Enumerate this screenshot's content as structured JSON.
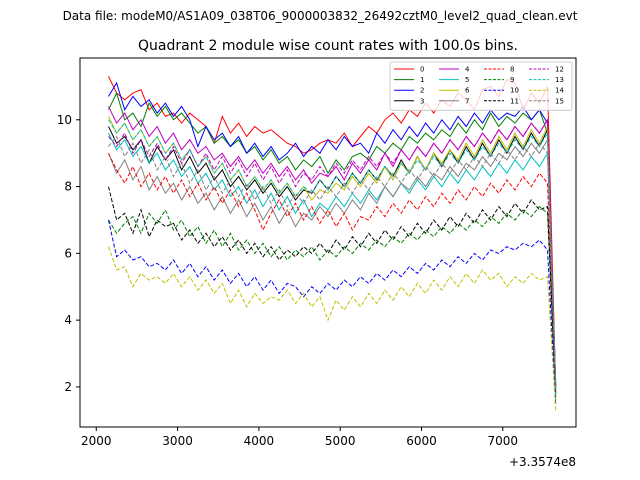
{
  "figure": {
    "suptitle": "Data file: modeM0/AS1A09_038T06_9000003832_26492cztM0_level2_quad_clean.evt",
    "offset_label": "+3.3574e8"
  },
  "chart_data": {
    "type": "line",
    "title": "Quadrant 2 module wise count rates with 100.0s bins.",
    "xlabel": "",
    "ylabel": "",
    "x_offset": 335740000,
    "xlim": [
      1800,
      7900
    ],
    "ylim": [
      0.8,
      11.85
    ],
    "xticks": [
      2000,
      3000,
      4000,
      5000,
      6000,
      7000
    ],
    "yticks": [
      2,
      4,
      6,
      8,
      10
    ],
    "grid": false,
    "legend_position": "top-right",
    "legend_columns": 4,
    "x_start": 2150,
    "x_step": 100,
    "series": [
      {
        "name": "0",
        "color": "#ff0000",
        "style": "solid",
        "values": [
          11.3,
          10.8,
          10.6,
          10.8,
          10.9,
          10.3,
          10.5,
          10.1,
          10.2,
          9.9,
          10.2,
          10.0,
          9.8,
          9.3,
          10.1,
          9.6,
          9.9,
          9.5,
          9.8,
          9.6,
          9.7,
          9.5,
          9.3,
          9.2,
          9.0,
          9.1,
          9.3,
          9.4,
          9.3,
          9.6,
          9.2,
          9.5,
          9.8,
          9.6,
          10.0,
          10.2,
          9.9,
          10.3,
          10.1,
          10.5,
          10.2,
          10.6,
          10.4,
          10.8,
          10.6,
          10.3,
          10.9,
          11.0,
          10.7,
          11.2,
          11.1,
          10.3,
          10.8,
          10.5,
          11.0,
          2.0
        ]
      },
      {
        "name": "1",
        "color": "#008000",
        "style": "solid",
        "values": [
          10.3,
          10.8,
          10.0,
          10.2,
          9.8,
          10.5,
          10.1,
          10.4,
          10.0,
          10.2,
          9.9,
          9.6,
          9.8,
          9.3,
          9.5,
          9.2,
          9.4,
          9.0,
          9.2,
          8.8,
          9.1,
          8.7,
          8.9,
          8.5,
          8.8,
          8.6,
          8.9,
          8.4,
          8.8,
          8.5,
          8.9,
          9.0,
          8.8,
          9.2,
          9.0,
          9.3,
          9.1,
          9.5,
          9.3,
          9.6,
          9.4,
          9.7,
          9.5,
          9.9,
          9.6,
          10.0,
          9.7,
          10.2,
          9.8,
          10.1,
          9.9,
          10.2,
          10.0,
          10.3,
          9.6,
          2.1
        ]
      },
      {
        "name": "2",
        "color": "#0000ff",
        "style": "solid",
        "values": [
          10.7,
          11.1,
          10.3,
          10.7,
          10.4,
          10.6,
          10.2,
          10.5,
          10.1,
          10.4,
          10.0,
          9.2,
          9.8,
          9.4,
          9.6,
          9.2,
          9.5,
          9.0,
          9.3,
          8.9,
          9.2,
          8.8,
          9.0,
          9.3,
          8.9,
          9.2,
          9.0,
          9.4,
          9.1,
          9.5,
          9.2,
          9.3,
          9.0,
          9.6,
          9.3,
          9.7,
          9.4,
          9.8,
          9.5,
          9.9,
          9.6,
          10.0,
          9.7,
          10.1,
          9.8,
          10.2,
          9.9,
          10.3,
          10.0,
          10.2,
          10.1,
          10.4,
          10.0,
          10.3,
          9.9,
          2.0
        ]
      },
      {
        "name": "3",
        "color": "#000000",
        "style": "solid",
        "values": [
          9.8,
          9.3,
          9.5,
          9.1,
          9.4,
          8.7,
          9.2,
          8.8,
          9.1,
          8.5,
          8.9,
          8.4,
          8.7,
          8.2,
          8.5,
          8.0,
          8.3,
          7.9,
          8.2,
          7.8,
          8.1,
          7.7,
          8.0,
          7.6,
          7.9,
          7.8,
          8.2,
          7.9,
          8.3,
          8.0,
          8.4,
          8.1,
          8.5,
          8.2,
          8.6,
          8.3,
          8.8,
          8.4,
          8.9,
          8.5,
          9.0,
          8.6,
          9.1,
          8.7,
          9.2,
          8.8,
          9.3,
          8.9,
          9.4,
          9.0,
          9.5,
          9.1,
          9.6,
          9.2,
          9.7,
          1.9
        ]
      },
      {
        "name": "4",
        "color": "#bf00bf",
        "style": "solid",
        "values": [
          10.4,
          9.9,
          10.2,
          9.7,
          10.0,
          9.5,
          9.8,
          9.3,
          9.6,
          9.1,
          9.4,
          9.0,
          9.2,
          8.8,
          9.0,
          8.6,
          8.9,
          8.5,
          8.8,
          8.4,
          8.7,
          8.3,
          8.6,
          8.2,
          8.5,
          8.1,
          8.4,
          8.3,
          8.6,
          8.2,
          8.7,
          8.4,
          8.8,
          8.5,
          9.0,
          8.6,
          9.1,
          8.8,
          9.2,
          8.9,
          9.3,
          9.0,
          9.4,
          9.1,
          9.5,
          9.2,
          9.6,
          9.3,
          9.7,
          9.4,
          9.8,
          9.5,
          9.9,
          9.6,
          10.0,
          1.8
        ]
      },
      {
        "name": "5",
        "color": "#00bfbf",
        "style": "solid",
        "values": [
          9.6,
          9.1,
          9.4,
          8.9,
          9.2,
          8.7,
          9.0,
          8.5,
          8.8,
          8.3,
          8.6,
          8.1,
          8.4,
          7.9,
          8.2,
          7.7,
          8.0,
          7.5,
          7.9,
          7.4,
          7.8,
          7.3,
          7.7,
          7.2,
          7.6,
          7.1,
          7.5,
          7.3,
          7.7,
          7.4,
          7.8,
          7.5,
          7.9,
          7.6,
          8.0,
          7.7,
          8.1,
          7.8,
          8.2,
          7.9,
          8.3,
          8.0,
          8.4,
          8.1,
          8.5,
          8.2,
          8.6,
          8.3,
          8.7,
          8.4,
          8.8,
          8.5,
          8.9,
          8.6,
          9.0,
          2.0
        ]
      },
      {
        "name": "6",
        "color": "#bfbf00",
        "style": "solid",
        "values": [
          10.1,
          9.6,
          9.9,
          9.4,
          9.7,
          9.2,
          9.5,
          9.0,
          9.3,
          8.8,
          9.1,
          8.6,
          8.9,
          8.4,
          8.7,
          8.2,
          8.5,
          8.0,
          8.3,
          7.9,
          8.2,
          7.8,
          8.1,
          7.7,
          8.0,
          7.6,
          7.9,
          7.8,
          8.1,
          7.9,
          8.3,
          8.0,
          8.4,
          8.1,
          8.6,
          8.2,
          8.7,
          8.4,
          8.9,
          8.5,
          9.0,
          8.7,
          9.1,
          8.8,
          9.3,
          8.9,
          9.4,
          9.0,
          9.5,
          9.1,
          9.6,
          9.2,
          9.7,
          9.3,
          9.8,
          1.9
        ]
      },
      {
        "name": "7",
        "color": "#808080",
        "style": "solid",
        "values": [
          9.0,
          8.4,
          8.8,
          8.2,
          8.6,
          7.9,
          8.3,
          7.8,
          8.1,
          7.6,
          8.0,
          7.5,
          7.8,
          7.3,
          7.7,
          7.2,
          7.6,
          7.1,
          7.5,
          7.0,
          7.4,
          6.9,
          7.3,
          6.8,
          7.2,
          7.0,
          7.4,
          7.1,
          7.5,
          7.2,
          7.6,
          7.3,
          7.8,
          7.5,
          8.0,
          7.7,
          8.1,
          7.9,
          8.3,
          8.0,
          8.4,
          8.2,
          8.6,
          8.3,
          8.7,
          8.5,
          8.9,
          8.6,
          9.0,
          8.8,
          9.2,
          8.9,
          9.3,
          9.0,
          9.4,
          2.1
        ]
      },
      {
        "name": "8",
        "color": "#ff0000",
        "style": "dashed",
        "values": [
          9.0,
          8.5,
          8.1,
          8.6,
          8.0,
          8.4,
          7.9,
          8.3,
          7.8,
          8.2,
          7.7,
          8.1,
          7.6,
          8.0,
          7.5,
          7.9,
          7.4,
          7.8,
          7.3,
          6.7,
          7.2,
          7.6,
          7.1,
          7.5,
          7.0,
          7.4,
          6.9,
          7.3,
          6.8,
          7.2,
          6.7,
          7.1,
          7.0,
          7.4,
          7.1,
          7.5,
          7.2,
          7.6,
          7.3,
          7.7,
          7.4,
          7.8,
          7.5,
          7.9,
          7.6,
          8.0,
          7.7,
          8.1,
          7.8,
          8.2,
          7.9,
          8.3,
          8.0,
          8.4,
          8.1,
          1.7
        ]
      },
      {
        "name": "9",
        "color": "#008000",
        "style": "dashed",
        "values": [
          7.0,
          6.6,
          6.9,
          7.1,
          6.6,
          7.2,
          6.9,
          7.3,
          6.7,
          7.0,
          6.5,
          6.8,
          6.3,
          6.7,
          6.2,
          6.6,
          6.1,
          6.4,
          6.0,
          6.3,
          5.9,
          6.2,
          5.8,
          6.1,
          5.9,
          6.2,
          5.8,
          6.1,
          5.9,
          6.2,
          6.0,
          6.3,
          6.1,
          6.4,
          6.2,
          6.5,
          6.3,
          6.6,
          6.4,
          6.7,
          6.5,
          6.8,
          6.6,
          6.9,
          6.7,
          7.0,
          6.8,
          7.1,
          6.9,
          7.2,
          7.0,
          7.3,
          7.1,
          7.4,
          7.2,
          1.6
        ]
      },
      {
        "name": "10",
        "color": "#0000ff",
        "style": "dashed",
        "values": [
          7.0,
          5.9,
          6.1,
          5.8,
          5.9,
          5.6,
          5.7,
          5.5,
          5.8,
          5.4,
          5.7,
          5.3,
          5.6,
          5.2,
          5.5,
          5.1,
          5.4,
          5.0,
          5.3,
          4.9,
          5.2,
          4.8,
          5.1,
          5.0,
          4.7,
          5.0,
          4.8,
          5.1,
          4.9,
          5.2,
          5.0,
          5.3,
          5.1,
          5.4,
          5.2,
          5.5,
          5.3,
          5.6,
          5.4,
          5.7,
          5.5,
          5.8,
          5.6,
          5.9,
          5.7,
          6.0,
          5.8,
          6.1,
          6.0,
          6.2,
          6.1,
          6.3,
          6.2,
          6.4,
          6.1,
          1.5
        ]
      },
      {
        "name": "11",
        "color": "#000000",
        "style": "dashed",
        "values": [
          8.0,
          7.0,
          7.2,
          6.6,
          7.3,
          6.5,
          7.0,
          6.8,
          6.9,
          6.4,
          6.7,
          6.3,
          6.6,
          6.2,
          6.5,
          6.1,
          6.4,
          6.0,
          6.3,
          5.9,
          6.2,
          5.8,
          6.1,
          5.9,
          6.2,
          6.0,
          6.3,
          6.0,
          6.4,
          6.1,
          6.5,
          6.2,
          6.6,
          6.3,
          6.7,
          6.4,
          6.8,
          6.5,
          6.9,
          6.6,
          7.0,
          6.7,
          7.1,
          6.8,
          7.2,
          6.9,
          7.3,
          7.0,
          7.4,
          7.1,
          7.5,
          7.2,
          7.6,
          7.3,
          7.4,
          1.8
        ]
      },
      {
        "name": "12",
        "color": "#bf00bf",
        "style": "dashed",
        "values": [
          9.5,
          9.2,
          9.6,
          9.0,
          9.4,
          8.9,
          9.3,
          8.8,
          9.2,
          8.7,
          9.1,
          8.6,
          9.0,
          8.5,
          8.9,
          8.4,
          8.8,
          8.3,
          8.7,
          8.2,
          8.6,
          8.1,
          8.5,
          8.0,
          8.4,
          8.2,
          8.6,
          8.3,
          8.7,
          8.4,
          8.8,
          8.5,
          8.9,
          8.6,
          9.0,
          8.7,
          9.1,
          8.8,
          9.2,
          8.9,
          9.3,
          9.0,
          9.4,
          9.1,
          9.5,
          9.2,
          9.6,
          9.3,
          9.7,
          9.4,
          9.8,
          9.5,
          9.9,
          9.6,
          10.0,
          1.9
        ]
      },
      {
        "name": "13",
        "color": "#00bfbf",
        "style": "dashed",
        "values": [
          10.0,
          9.6,
          9.9,
          9.4,
          9.7,
          9.2,
          9.5,
          9.0,
          9.3,
          8.8,
          9.1,
          8.6,
          8.9,
          8.4,
          8.7,
          8.2,
          8.5,
          8.0,
          8.3,
          7.9,
          8.2,
          7.8,
          8.1,
          7.7,
          8.0,
          7.8,
          8.2,
          7.9,
          8.3,
          8.0,
          8.4,
          8.1,
          8.5,
          8.2,
          8.6,
          8.3,
          8.7,
          8.4,
          8.8,
          8.5,
          8.9,
          8.6,
          9.0,
          8.7,
          9.1,
          8.8,
          9.2,
          8.9,
          9.3,
          9.0,
          9.4,
          9.1,
          9.5,
          9.2,
          9.6,
          1.7
        ]
      },
      {
        "name": "14",
        "color": "#bfbf00",
        "style": "dashed",
        "values": [
          6.2,
          5.5,
          5.6,
          5.0,
          5.4,
          5.2,
          5.3,
          5.1,
          5.4,
          5.0,
          5.3,
          4.9,
          5.2,
          4.8,
          5.1,
          4.5,
          4.9,
          4.4,
          4.8,
          4.5,
          4.7,
          4.6,
          4.9,
          4.5,
          4.8,
          4.4,
          4.7,
          4.0,
          4.6,
          4.3,
          4.7,
          4.4,
          4.8,
          4.5,
          4.9,
          4.6,
          5.0,
          4.7,
          5.1,
          4.8,
          5.2,
          4.9,
          5.3,
          5.0,
          5.4,
          5.1,
          5.5,
          5.2,
          5.4,
          5.0,
          5.3,
          5.1,
          5.4,
          5.2,
          5.3,
          1.3
        ]
      },
      {
        "name": "15",
        "color": "#808080",
        "style": "dashed",
        "values": [
          9.2,
          9.5,
          8.9,
          9.3,
          8.7,
          9.1,
          8.5,
          8.9,
          8.3,
          8.7,
          8.1,
          8.5,
          7.9,
          8.3,
          7.8,
          8.2,
          7.7,
          8.1,
          7.6,
          8.0,
          7.5,
          7.9,
          7.4,
          7.8,
          7.5,
          7.9,
          7.6,
          8.0,
          7.7,
          8.1,
          7.8,
          8.2,
          7.9,
          8.3,
          8.0,
          8.4,
          8.1,
          8.5,
          8.2,
          8.6,
          8.3,
          8.7,
          8.4,
          8.8,
          8.5,
          8.9,
          8.6,
          9.0,
          8.7,
          9.1,
          8.8,
          9.2,
          8.9,
          9.3,
          9.0,
          2.0
        ]
      }
    ]
  }
}
